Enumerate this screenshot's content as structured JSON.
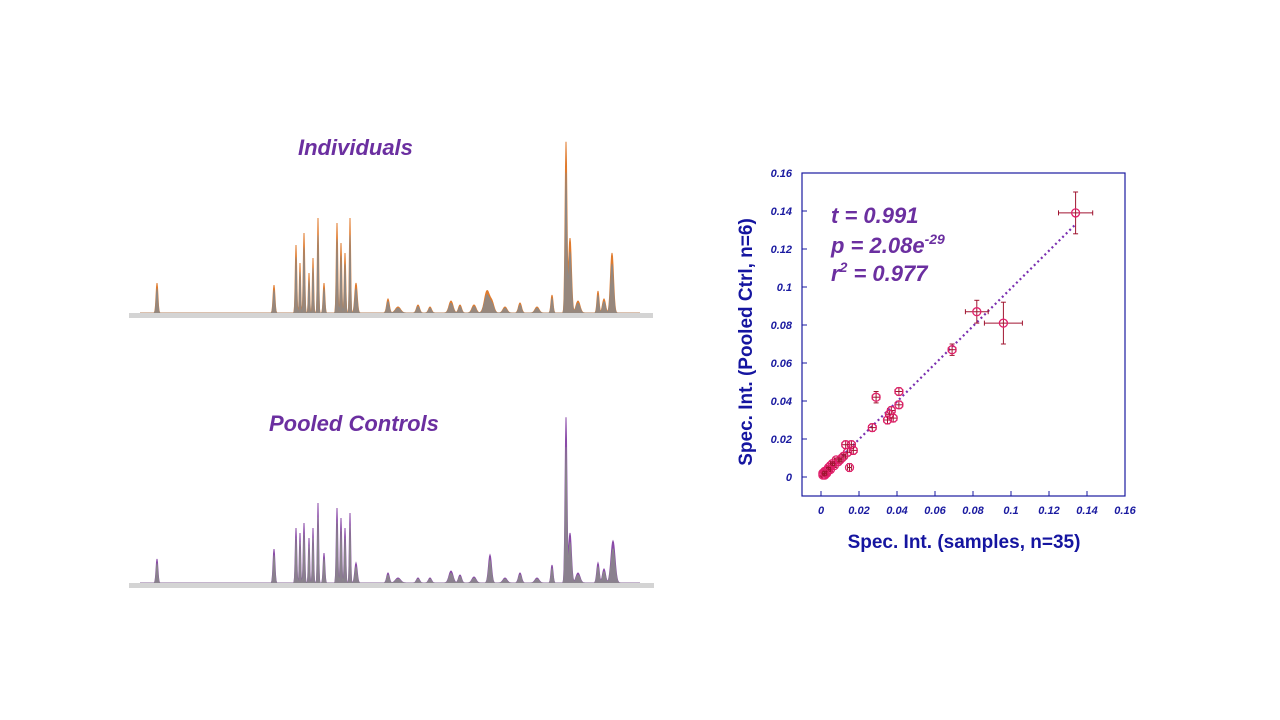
{
  "spectra": {
    "individuals_title": "Individuals",
    "pooled_title": "Pooled Controls",
    "individuals_color": "#e07b2e",
    "individuals_overlay_color": "#8a8a8a",
    "pooled_color": "#8a4aa8",
    "pooled_overlay_color": "#8a8a8a",
    "baseline_color": "#d4d4d4"
  },
  "chart_data": {
    "type": "scatter",
    "xlabel": "Spec. Int. (samples,  n=35)",
    "ylabel": "Spec. Int. (Pooled Ctrl,  n=6)",
    "xlim": [
      -0.01,
      0.16
    ],
    "ylim": [
      -0.01,
      0.16
    ],
    "xticks": [
      "0",
      "0.02",
      "0.04",
      "0.06",
      "0.08",
      "0.1",
      "0.12",
      "0.14",
      "0.16"
    ],
    "yticks": [
      "0",
      "0.02",
      "0.04",
      "0.06",
      "0.08",
      "0.1",
      "0.12",
      "0.14",
      "0.16"
    ],
    "point_color": "#e0206a",
    "errorbar_color": "#a01530",
    "fit_line_color": "#7a2fb0",
    "fit_line": {
      "x": [
        0,
        0.134
      ],
      "y": [
        0,
        0.133
      ]
    },
    "stats": {
      "t": "t = 0.991",
      "p_prefix": "p = 2.08e",
      "p_exponent": "-29",
      "r_prefix": "r",
      "r_exponent": "2",
      "r_suffix": " = 0.977"
    },
    "points": [
      {
        "x": 0.134,
        "y": 0.139,
        "xerr": 0.009,
        "yerr": 0.011
      },
      {
        "x": 0.096,
        "y": 0.081,
        "xerr": 0.01,
        "yerr": 0.011
      },
      {
        "x": 0.082,
        "y": 0.087,
        "xerr": 0.006,
        "yerr": 0.006
      },
      {
        "x": 0.069,
        "y": 0.067,
        "xerr": 0.002,
        "yerr": 0.003
      },
      {
        "x": 0.029,
        "y": 0.042,
        "xerr": 0.002,
        "yerr": 0.003
      },
      {
        "x": 0.041,
        "y": 0.045,
        "xerr": 0.002,
        "yerr": 0.002
      },
      {
        "x": 0.041,
        "y": 0.038,
        "xerr": 0.002,
        "yerr": 0.002
      },
      {
        "x": 0.037,
        "y": 0.035,
        "xerr": 0.002,
        "yerr": 0.002
      },
      {
        "x": 0.036,
        "y": 0.033,
        "xerr": 0.002,
        "yerr": 0.002
      },
      {
        "x": 0.035,
        "y": 0.03,
        "xerr": 0.002,
        "yerr": 0.002
      },
      {
        "x": 0.038,
        "y": 0.031,
        "xerr": 0.002,
        "yerr": 0.002
      },
      {
        "x": 0.027,
        "y": 0.026,
        "xerr": 0.002,
        "yerr": 0.002
      },
      {
        "x": 0.016,
        "y": 0.017,
        "xerr": 0.002,
        "yerr": 0.002
      },
      {
        "x": 0.013,
        "y": 0.017,
        "xerr": 0.002,
        "yerr": 0.002
      },
      {
        "x": 0.017,
        "y": 0.014,
        "xerr": 0.002,
        "yerr": 0.002
      },
      {
        "x": 0.014,
        "y": 0.013,
        "xerr": 0.002,
        "yerr": 0.002
      },
      {
        "x": 0.015,
        "y": 0.005,
        "xerr": 0.001,
        "yerr": 0.002
      },
      {
        "x": 0.011,
        "y": 0.01,
        "xerr": 0.001,
        "yerr": 0.001
      },
      {
        "x": 0.009,
        "y": 0.008,
        "xerr": 0.001,
        "yerr": 0.001
      },
      {
        "x": 0.008,
        "y": 0.009,
        "xerr": 0.001,
        "yerr": 0.001
      },
      {
        "x": 0.007,
        "y": 0.006,
        "xerr": 0.001,
        "yerr": 0.001
      },
      {
        "x": 0.005,
        "y": 0.006,
        "xerr": 0.001,
        "yerr": 0.001
      },
      {
        "x": 0.005,
        "y": 0.004,
        "xerr": 0.001,
        "yerr": 0.001
      },
      {
        "x": 0.004,
        "y": 0.005,
        "xerr": 0.001,
        "yerr": 0.001
      },
      {
        "x": 0.003,
        "y": 0.003,
        "xerr": 0.001,
        "yerr": 0.001
      },
      {
        "x": 0.003,
        "y": 0.002,
        "xerr": 0.001,
        "yerr": 0.001
      },
      {
        "x": 0.002,
        "y": 0.003,
        "xerr": 0.001,
        "yerr": 0.001
      },
      {
        "x": 0.002,
        "y": 0.001,
        "xerr": 0.001,
        "yerr": 0.001
      },
      {
        "x": 0.001,
        "y": 0.002,
        "xerr": 0.001,
        "yerr": 0.001
      },
      {
        "x": 0.001,
        "y": 0.001,
        "xerr": 0.001,
        "yerr": 0.001
      },
      {
        "x": 0.012,
        "y": 0.011,
        "xerr": 0.001,
        "yerr": 0.001
      },
      {
        "x": 0.01,
        "y": 0.009,
        "xerr": 0.001,
        "yerr": 0.001
      },
      {
        "x": 0.006,
        "y": 0.007,
        "xerr": 0.001,
        "yerr": 0.001
      },
      {
        "x": 0.004,
        "y": 0.004,
        "xerr": 0.001,
        "yerr": 0.001
      },
      {
        "x": 0.002,
        "y": 0.002,
        "xerr": 0.001,
        "yerr": 0.001
      }
    ]
  }
}
